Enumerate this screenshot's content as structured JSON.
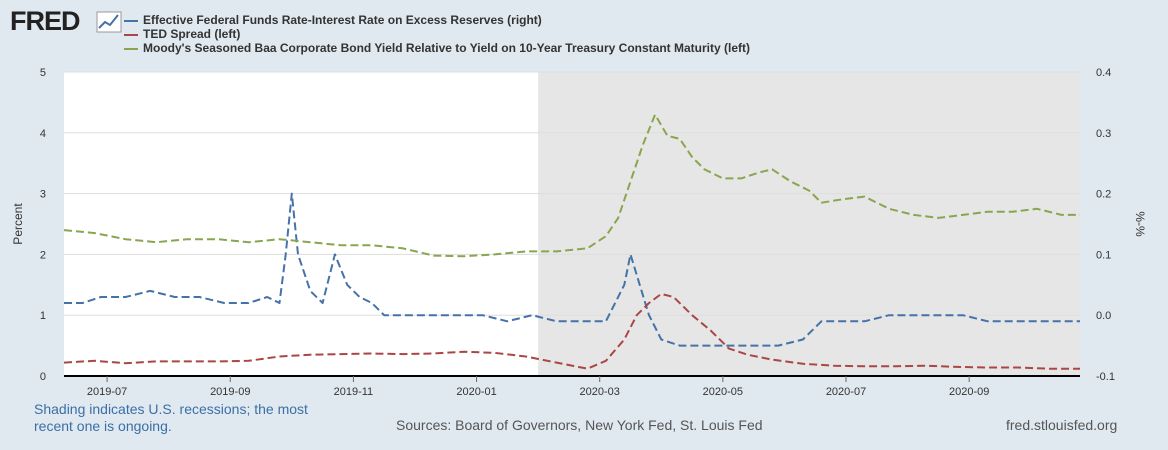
{
  "logo": "FRED",
  "legend": [
    {
      "label": "Effective Federal Funds Rate-Interest Rate on Excess Reserves (right)",
      "color": "#4572a7"
    },
    {
      "label": "TED Spread (left)",
      "color": "#aa4643"
    },
    {
      "label": "Moody's Seasoned Baa Corporate Bond Yield Relative to Yield on 10-Year Treasury Constant Maturity (left)",
      "color": "#89a54e"
    }
  ],
  "notes": {
    "shading": "Shading indicates U.S. recessions; the most recent one is ongoing.",
    "sources": "Sources: Board of Governors, New York Fed, St. Louis Fed",
    "site": "fred.stlouisfed.org"
  },
  "chart_data": {
    "type": "line",
    "recession_start": "2020-02",
    "x_start": "2019-06-10",
    "x_end": "2020-10-26",
    "x_ticks": [
      "2019-07",
      "2019-09",
      "2019-11",
      "2020-01",
      "2020-03",
      "2020-05",
      "2020-07",
      "2020-09"
    ],
    "x_tick_positions_months": [
      0.7,
      2.7,
      4.7,
      6.7,
      8.7,
      10.7,
      12.7,
      14.7
    ],
    "y_left": {
      "label": "Percent",
      "min": 0,
      "max": 5,
      "ticks": [
        "0",
        "1",
        "2",
        "3",
        "4",
        "5"
      ]
    },
    "y_right": {
      "label": "%-%",
      "min": -0.1,
      "max": 0.4,
      "ticks": [
        "-0.1",
        "0.0",
        "0.1",
        "0.2",
        "0.3",
        "0.4"
      ]
    },
    "series": [
      {
        "name": "Effective Federal Funds Rate-Interest Rate on Excess Reserves (right)",
        "axis": "right",
        "color": "#4572a7",
        "points": [
          [
            0,
            0.02
          ],
          [
            0.3,
            0.02
          ],
          [
            0.6,
            0.03
          ],
          [
            1.0,
            0.03
          ],
          [
            1.4,
            0.04
          ],
          [
            1.8,
            0.03
          ],
          [
            2.2,
            0.03
          ],
          [
            2.6,
            0.02
          ],
          [
            3.0,
            0.02
          ],
          [
            3.3,
            0.03
          ],
          [
            3.5,
            0.02
          ],
          [
            3.6,
            0.1
          ],
          [
            3.7,
            0.2
          ],
          [
            3.8,
            0.1
          ],
          [
            4.0,
            0.04
          ],
          [
            4.2,
            0.02
          ],
          [
            4.4,
            0.1
          ],
          [
            4.6,
            0.05
          ],
          [
            4.8,
            0.03
          ],
          [
            5.0,
            0.02
          ],
          [
            5.2,
            0.0
          ],
          [
            5.6,
            0.0
          ],
          [
            6.0,
            0.0
          ],
          [
            6.4,
            0.0
          ],
          [
            6.8,
            0.0
          ],
          [
            7.2,
            -0.01
          ],
          [
            7.6,
            0.0
          ],
          [
            8.0,
            -0.01
          ],
          [
            8.4,
            -0.01
          ],
          [
            8.8,
            -0.01
          ],
          [
            9.1,
            0.05
          ],
          [
            9.2,
            0.1
          ],
          [
            9.35,
            0.05
          ],
          [
            9.5,
            0.0
          ],
          [
            9.7,
            -0.04
          ],
          [
            10.0,
            -0.05
          ],
          [
            10.4,
            -0.05
          ],
          [
            10.8,
            -0.05
          ],
          [
            11.2,
            -0.05
          ],
          [
            11.6,
            -0.05
          ],
          [
            12.0,
            -0.04
          ],
          [
            12.3,
            -0.01
          ],
          [
            12.6,
            -0.01
          ],
          [
            13.0,
            -0.01
          ],
          [
            13.4,
            0.0
          ],
          [
            13.8,
            0.0
          ],
          [
            14.2,
            0.0
          ],
          [
            14.6,
            0.0
          ],
          [
            15.0,
            -0.01
          ],
          [
            15.4,
            -0.01
          ],
          [
            15.8,
            -0.01
          ],
          [
            16.2,
            -0.01
          ],
          [
            16.5,
            -0.01
          ]
        ]
      },
      {
        "name": "TED Spread (left)",
        "axis": "left",
        "color": "#aa4643",
        "points": [
          [
            0,
            0.22
          ],
          [
            0.5,
            0.25
          ],
          [
            1.0,
            0.21
          ],
          [
            1.5,
            0.24
          ],
          [
            2.0,
            0.24
          ],
          [
            2.5,
            0.24
          ],
          [
            3.0,
            0.25
          ],
          [
            3.5,
            0.32
          ],
          [
            4.0,
            0.35
          ],
          [
            4.5,
            0.36
          ],
          [
            5.0,
            0.37
          ],
          [
            5.5,
            0.36
          ],
          [
            6.0,
            0.37
          ],
          [
            6.5,
            0.4
          ],
          [
            7.0,
            0.38
          ],
          [
            7.5,
            0.32
          ],
          [
            8.0,
            0.22
          ],
          [
            8.5,
            0.12
          ],
          [
            8.8,
            0.25
          ],
          [
            9.1,
            0.6
          ],
          [
            9.3,
            1.0
          ],
          [
            9.5,
            1.2
          ],
          [
            9.7,
            1.35
          ],
          [
            9.9,
            1.3
          ],
          [
            10.2,
            1.0
          ],
          [
            10.5,
            0.75
          ],
          [
            10.8,
            0.45
          ],
          [
            11.1,
            0.35
          ],
          [
            11.5,
            0.27
          ],
          [
            12.0,
            0.2
          ],
          [
            12.5,
            0.17
          ],
          [
            13.0,
            0.16
          ],
          [
            13.5,
            0.16
          ],
          [
            14.0,
            0.17
          ],
          [
            14.5,
            0.15
          ],
          [
            15.0,
            0.14
          ],
          [
            15.5,
            0.14
          ],
          [
            16.0,
            0.12
          ],
          [
            16.5,
            0.12
          ]
        ]
      },
      {
        "name": "Moody's Seasoned Baa Corporate Bond Yield Relative to Yield on 10-Year Treasury Constant Maturity (left)",
        "axis": "left",
        "color": "#89a54e",
        "points": [
          [
            0,
            2.4
          ],
          [
            0.5,
            2.35
          ],
          [
            1.0,
            2.25
          ],
          [
            1.5,
            2.2
          ],
          [
            2.0,
            2.25
          ],
          [
            2.5,
            2.25
          ],
          [
            3.0,
            2.2
          ],
          [
            3.5,
            2.25
          ],
          [
            4.0,
            2.2
          ],
          [
            4.5,
            2.15
          ],
          [
            5.0,
            2.15
          ],
          [
            5.5,
            2.1
          ],
          [
            6.0,
            1.98
          ],
          [
            6.5,
            1.97
          ],
          [
            7.0,
            2.0
          ],
          [
            7.5,
            2.05
          ],
          [
            8.0,
            2.05
          ],
          [
            8.5,
            2.1
          ],
          [
            8.8,
            2.3
          ],
          [
            9.0,
            2.6
          ],
          [
            9.2,
            3.2
          ],
          [
            9.4,
            3.8
          ],
          [
            9.6,
            4.3
          ],
          [
            9.8,
            3.95
          ],
          [
            10.0,
            3.9
          ],
          [
            10.2,
            3.6
          ],
          [
            10.4,
            3.4
          ],
          [
            10.7,
            3.25
          ],
          [
            11.0,
            3.25
          ],
          [
            11.3,
            3.35
          ],
          [
            11.5,
            3.4
          ],
          [
            11.8,
            3.2
          ],
          [
            12.1,
            3.05
          ],
          [
            12.3,
            2.85
          ],
          [
            12.6,
            2.9
          ],
          [
            13.0,
            2.95
          ],
          [
            13.4,
            2.75
          ],
          [
            13.8,
            2.65
          ],
          [
            14.2,
            2.6
          ],
          [
            14.6,
            2.65
          ],
          [
            15.0,
            2.7
          ],
          [
            15.4,
            2.7
          ],
          [
            15.8,
            2.75
          ],
          [
            16.2,
            2.65
          ],
          [
            16.5,
            2.65
          ]
        ]
      }
    ]
  }
}
